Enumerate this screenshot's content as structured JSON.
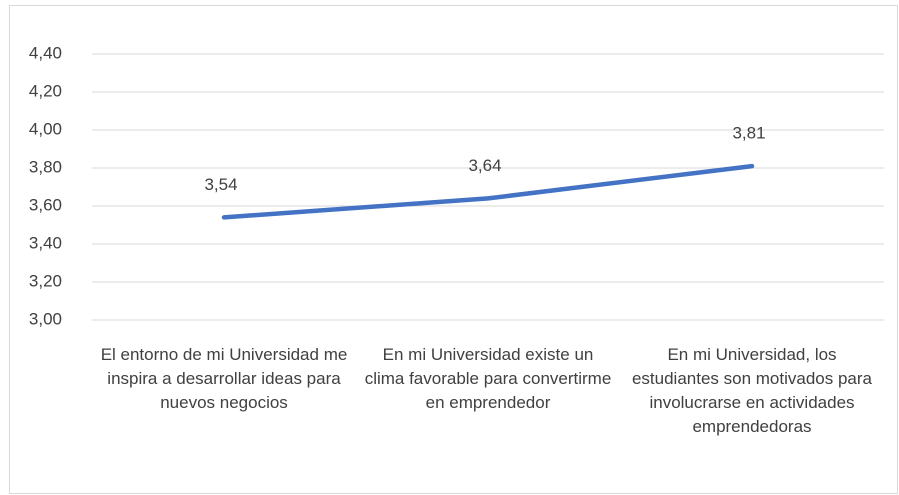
{
  "chart_data": {
    "type": "line",
    "categories": [
      "El entorno de mi Universidad me inspira a desarrollar ideas para nuevos negocios",
      "En mi Universidad existe un clima favorable para convertirme en emprendedor",
      "En mi Universidad, los estudiantes son motivados para involucrarse en actividades emprendedoras"
    ],
    "values": [
      3.54,
      3.64,
      3.81
    ],
    "value_labels": [
      "3,54",
      "3,64",
      "3,81"
    ],
    "color": "#4472c4",
    "ylim": [
      3.0,
      4.4
    ],
    "yticks": [
      {
        "value": 3.0,
        "label": "3,00"
      },
      {
        "value": 3.2,
        "label": "3,20"
      },
      {
        "value": 3.4,
        "label": "3,40"
      },
      {
        "value": 3.6,
        "label": "3,60"
      },
      {
        "value": 3.8,
        "label": "3,80"
      },
      {
        "value": 4.0,
        "label": "4,00"
      },
      {
        "value": 4.2,
        "label": "4,20"
      },
      {
        "value": 4.4,
        "label": "4,40"
      }
    ],
    "grid": true
  }
}
